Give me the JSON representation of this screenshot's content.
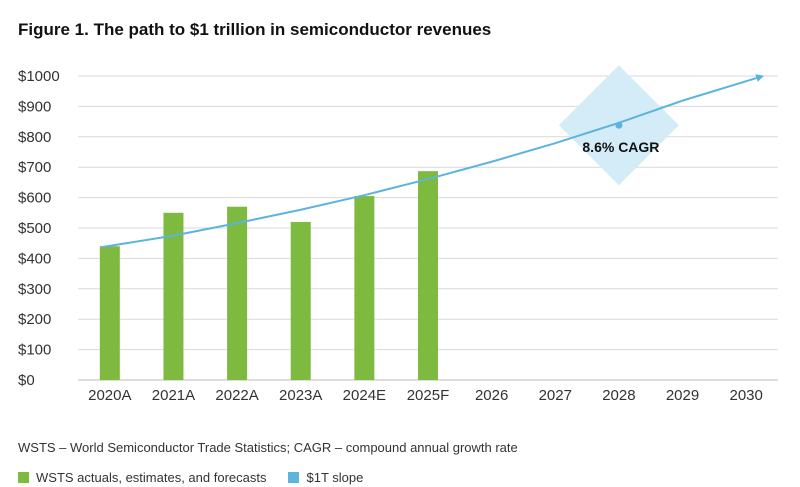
{
  "title": "Figure 1. The path to $1 trillion in semiconductor revenues",
  "source_note": "WSTS – World Semiconductor Trade Statistics; CAGR – compound annual growth rate",
  "colors": {
    "bar": "#7dba3f",
    "line": "#5db4dd",
    "diamond": "#d4ecf8",
    "grid": "#d9d9d9"
  },
  "legend": [
    {
      "label": "WSTS actuals, estimates, and forecasts",
      "color": "#7dba3f"
    },
    {
      "label": "$1T slope",
      "color": "#5db4dd"
    }
  ],
  "chart_data": {
    "type": "bar",
    "categories": [
      "2020A",
      "2021A",
      "2022A",
      "2023A",
      "2024E",
      "2025F",
      "2026",
      "2027",
      "2028",
      "2029",
      "2030"
    ],
    "ylim": [
      0,
      1000
    ],
    "yticks": [
      0,
      100,
      200,
      300,
      400,
      500,
      600,
      700,
      800,
      900,
      1000
    ],
    "ytick_labels": [
      "$0",
      "$100",
      "$200",
      "$300",
      "$400",
      "$500",
      "$600",
      "$700",
      "$800",
      "$900",
      "$1000"
    ],
    "grid": true,
    "series": [
      {
        "name": "WSTS actuals, estimates, and forecasts",
        "type": "bar",
        "values": [
          440,
          550,
          570,
          520,
          605,
          687,
          null,
          null,
          null,
          null,
          null
        ]
      },
      {
        "name": "$1T slope",
        "type": "line",
        "values": [
          437,
          475,
          516,
          560,
          608,
          661,
          718,
          779,
          846,
          919,
          999
        ]
      }
    ],
    "annotation": {
      "text": "8.6% CAGR",
      "category": "2028",
      "value": 838
    }
  }
}
